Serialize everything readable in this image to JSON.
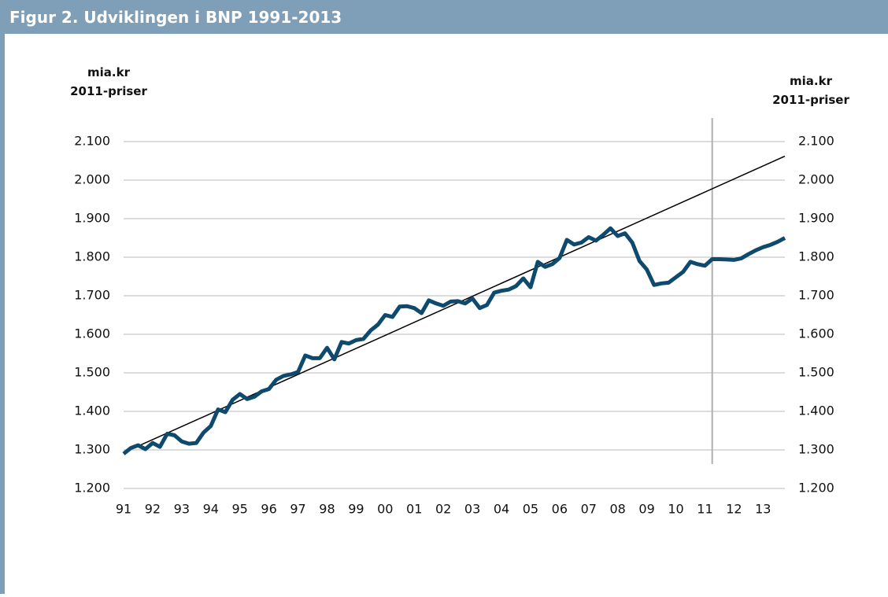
{
  "chart_data": {
    "type": "line",
    "title": "Figur 2. Udviklingen i BNP 1991-2013",
    "y_label": [
      "mia.kr",
      "2011-priser"
    ],
    "y2_label": [
      "mia.kr",
      "2011-priser"
    ],
    "categories": [
      "91",
      null,
      null,
      null,
      "92",
      null,
      null,
      null,
      "93",
      null,
      null,
      null,
      "94",
      null,
      null,
      null,
      "95",
      null,
      null,
      null,
      "96",
      null,
      null,
      null,
      "97",
      null,
      null,
      null,
      "98",
      null,
      null,
      null,
      "99",
      null,
      null,
      null,
      "00",
      null,
      null,
      null,
      "01",
      null,
      null,
      null,
      "02",
      null,
      null,
      null,
      "03",
      null,
      null,
      null,
      "04",
      null,
      null,
      null,
      "05",
      null,
      null,
      null,
      "06",
      null,
      null,
      null,
      "07",
      null,
      null,
      null,
      "08",
      null,
      null,
      null,
      "09",
      null,
      null,
      null,
      "10",
      null,
      null,
      null,
      "11",
      null,
      null,
      null,
      "12",
      null,
      null,
      null,
      "13",
      null,
      null,
      null
    ],
    "series": [
      {
        "name": "BNP",
        "color": "#0d4a6e",
        "values": [
          1290,
          1305,
          1312,
          1302,
          1318,
          1308,
          1342,
          1338,
          1322,
          1316,
          1318,
          1345,
          1362,
          1405,
          1398,
          1430,
          1445,
          1432,
          1438,
          1452,
          1458,
          1482,
          1492,
          1496,
          1502,
          1545,
          1538,
          1538,
          1565,
          1535,
          1580,
          1576,
          1585,
          1588,
          1610,
          1625,
          1650,
          1645,
          1672,
          1673,
          1668,
          1655,
          1688,
          1680,
          1674,
          1685,
          1686,
          1680,
          1693,
          1668,
          1676,
          1708,
          1713,
          1716,
          1725,
          1745,
          1722,
          1788,
          1775,
          1782,
          1798,
          1845,
          1833,
          1838,
          1852,
          1843,
          1858,
          1875,
          1855,
          1862,
          1838,
          1790,
          1768,
          1728,
          1732,
          1734,
          1748,
          1762,
          1788,
          1782,
          1778,
          1795,
          1795,
          1794,
          1793,
          1797,
          1808,
          1818,
          1826,
          1832,
          1840,
          1850
        ]
      }
    ],
    "trend_line": {
      "color": "#000000",
      "values": [
        1293,
        2062
      ]
    },
    "divider_at": 81,
    "ylim": [
      1200,
      2100
    ],
    "yticks": [
      {
        "value": 1200,
        "label": "1.200"
      },
      {
        "value": 1300,
        "label": "1.300"
      },
      {
        "value": 1400,
        "label": "1.400"
      },
      {
        "value": 1500,
        "label": "1.500"
      },
      {
        "value": 1600,
        "label": "1.600"
      },
      {
        "value": 1700,
        "label": "1.700"
      },
      {
        "value": 1800,
        "label": "1.800"
      },
      {
        "value": 1900,
        "label": "1.900"
      },
      {
        "value": 2000,
        "label": "2.000"
      },
      {
        "value": 2100,
        "label": "2.100"
      }
    ],
    "y2lim": [
      1200,
      2100
    ],
    "y2ticks": [
      {
        "value": 1200,
        "label": "1.200"
      },
      {
        "value": 1300,
        "label": "1.300"
      },
      {
        "value": 1400,
        "label": "1.400"
      },
      {
        "value": 1500,
        "label": "1.500"
      },
      {
        "value": 1600,
        "label": "1.600"
      },
      {
        "value": 1700,
        "label": "1.700"
      },
      {
        "value": 1800,
        "label": "1.800"
      },
      {
        "value": 1900,
        "label": "1.900"
      },
      {
        "value": 2000,
        "label": "2.000"
      },
      {
        "value": 2100,
        "label": "2.100"
      }
    ],
    "grid": true
  }
}
